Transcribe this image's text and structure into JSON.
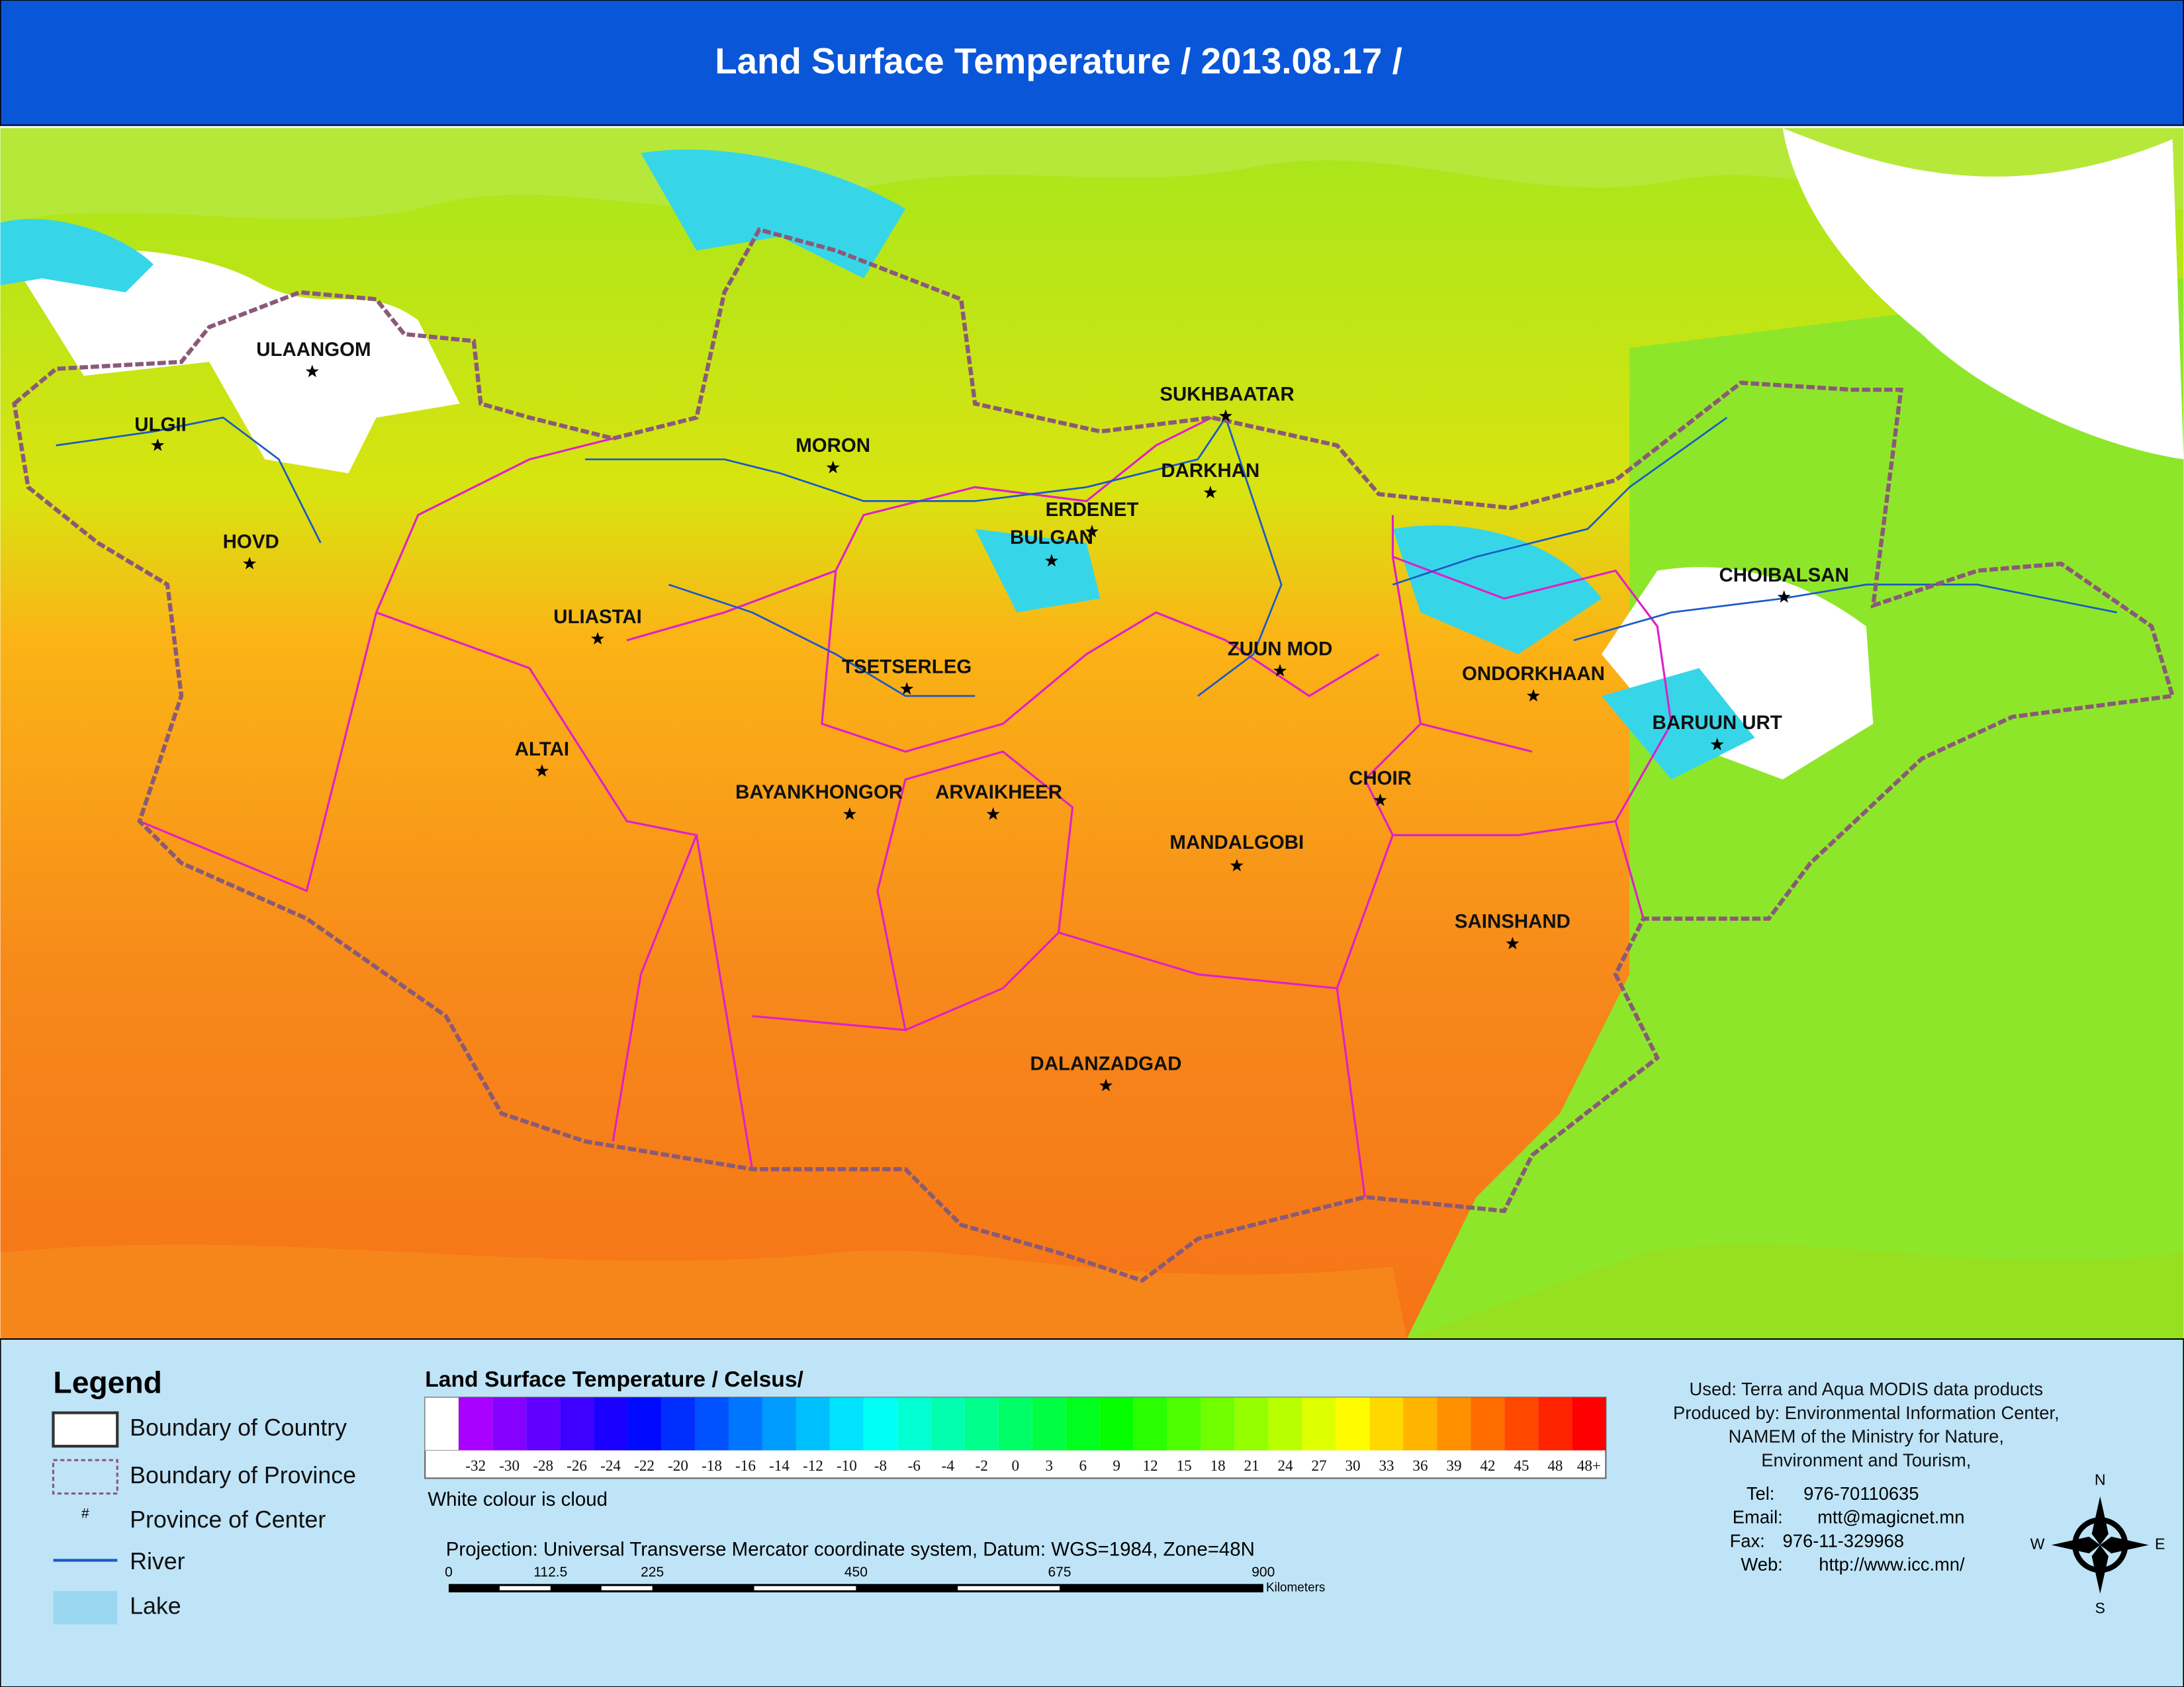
{
  "header": {
    "title": "Land Surface Temperature / 2013.08.17 /"
  },
  "map": {
    "cities": [
      "ULAANGOM",
      "ULGII",
      "HOVD",
      "MORON",
      "SUKHBAATAR",
      "DARKHAN",
      "ERDENET",
      "BULGAN",
      "ULIASTAI",
      "ZUUN MOD",
      "TSETSERLEG",
      "CHOIBALSAN",
      "ONDORKHAAN",
      "BARUUN URT",
      "ALTAI",
      "CHOIR",
      "BAYANKHONGOR",
      "ARVAIKHEER",
      "MANDALGOBI",
      "SAINSHAND",
      "DALANZADGAD"
    ]
  },
  "legend": {
    "title": "Legend",
    "items": [
      "Boundary of Country",
      "Boundary of Province",
      "Province of Center",
      "River",
      "Lake"
    ],
    "center_symbol": "#"
  },
  "color_scale": {
    "title": "Land Surface Temperature / Celsus/",
    "labels": [
      "-32",
      "-30",
      "-28",
      "-26",
      "-24",
      "-22",
      "-20",
      "-18",
      "-16",
      "-14",
      "-12",
      "-10",
      "-8",
      "-6",
      "-4",
      "-2",
      "0",
      "3",
      "6",
      "9",
      "12",
      "15",
      "18",
      "21",
      "24",
      "27",
      "30",
      "33",
      "36",
      "39",
      "42",
      "45",
      "48",
      "48+"
    ],
    "note": "White colour is cloud"
  },
  "projection": {
    "text": "Projection: Universal Transverse Mercator coordinate system, Datum: WGS=1984, Zone=48N",
    "scale_labels": [
      "0",
      "112.5",
      "225",
      "450",
      "675",
      "900"
    ],
    "unit": "Kilometers"
  },
  "credits": {
    "lines": [
      "Used: Terra and Aqua MODIS data products",
      "Produced by: Environmental Information Center,",
      "NAMEM of the Ministry for Nature,",
      "Environment and Tourism,"
    ]
  },
  "contact": {
    "rows": [
      [
        "Tel:",
        "976-70110635"
      ],
      [
        "Email:",
        "mtt@magicnet.mn"
      ],
      [
        "Fax:",
        "976-11-329968"
      ],
      [
        "Web:",
        "http://www.icc.mn/"
      ]
    ]
  },
  "compass": {
    "n": "N",
    "e": "E",
    "s": "S",
    "w": "W"
  }
}
